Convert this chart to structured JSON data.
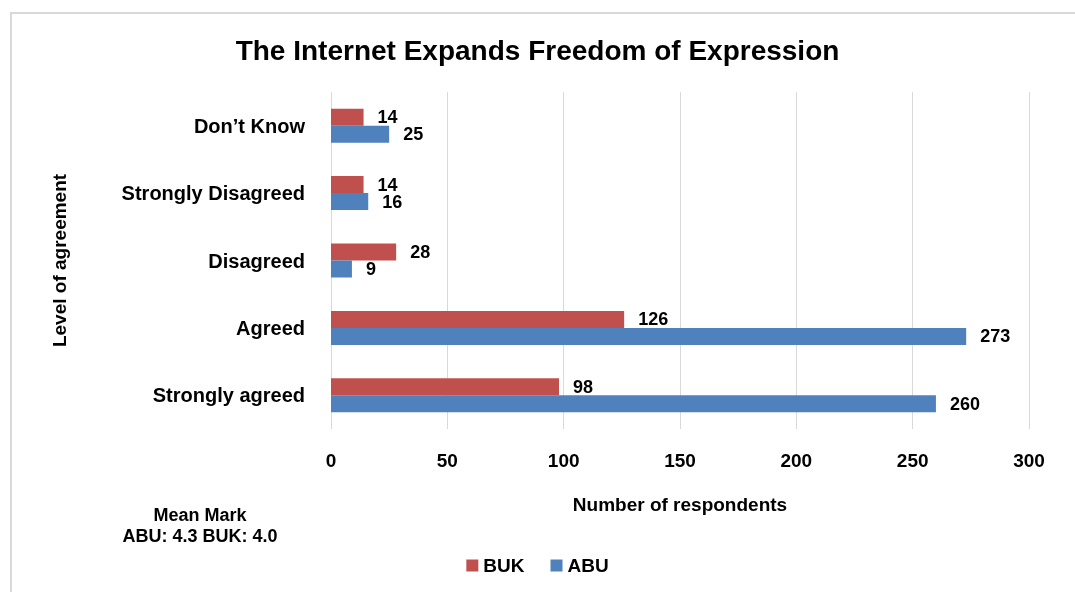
{
  "chart_data": {
    "type": "bar",
    "orientation": "horizontal",
    "title": "The Internet Expands Freedom of Expression",
    "xlabel": "Number of respondents",
    "ylabel": "Level of agreement",
    "categories": [
      "Don’t Know",
      "Strongly Disagreed",
      "Disagreed",
      "Agreed",
      "Strongly agreed"
    ],
    "series": [
      {
        "name": "BUK",
        "color": "#c0504d",
        "values": [
          14,
          14,
          28,
          126,
          98
        ]
      },
      {
        "name": "ABU",
        "color": "#4f81bd",
        "values": [
          25,
          16,
          9,
          273,
          260
        ]
      }
    ],
    "xlim": [
      0,
      300
    ],
    "xticks": [
      0,
      50,
      100,
      150,
      200,
      250,
      300
    ],
    "grid": "x",
    "legend": "bottom",
    "data_labels": true,
    "annotations": [
      "Mean Mark",
      "ABU: 4.3 BUK: 4.0"
    ]
  }
}
